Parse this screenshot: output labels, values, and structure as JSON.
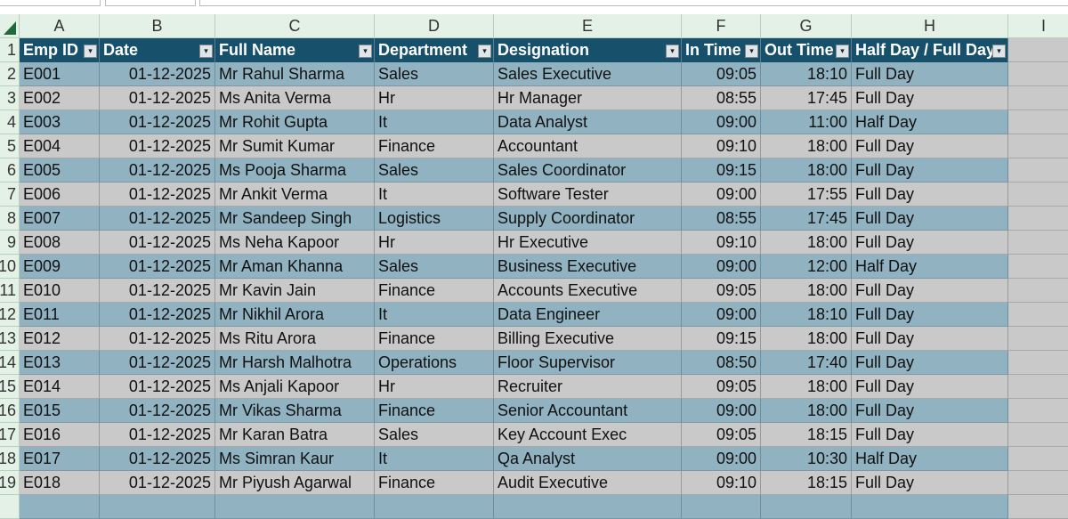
{
  "column_letters": [
    "A",
    "B",
    "C",
    "D",
    "E",
    "F",
    "G",
    "H",
    "I"
  ],
  "row_numbers": [
    "1",
    "2",
    "3",
    "4",
    "5",
    "6",
    "7",
    "8",
    "9",
    "10",
    "11",
    "12",
    "13",
    "14",
    "15",
    "16",
    "17",
    "18",
    "19"
  ],
  "table": {
    "headers": [
      "Emp ID",
      "Date",
      "Full Name",
      "Department",
      "Designation",
      "In Time",
      "Out Time",
      "Half Day / Full Day"
    ],
    "rows": [
      [
        "E001",
        "01-12-2025",
        "Mr Rahul Sharma",
        "Sales",
        "Sales Executive",
        "09:05",
        "18:10",
        "Full Day"
      ],
      [
        "E002",
        "01-12-2025",
        "Ms Anita Verma",
        "Hr",
        "Hr Manager",
        "08:55",
        "17:45",
        "Full Day"
      ],
      [
        "E003",
        "01-12-2025",
        "Mr Rohit Gupta",
        "It",
        "Data Analyst",
        "09:00",
        "11:00",
        "Half Day"
      ],
      [
        "E004",
        "01-12-2025",
        "Mr Sumit Kumar",
        "Finance",
        "Accountant",
        "09:10",
        "18:00",
        "Full Day"
      ],
      [
        "E005",
        "01-12-2025",
        "Ms Pooja Sharma",
        "Sales",
        "Sales Coordinator",
        "09:15",
        "18:00",
        "Full Day"
      ],
      [
        "E006",
        "01-12-2025",
        "Mr Ankit Verma",
        "It",
        "Software Tester",
        "09:00",
        "17:55",
        "Full Day"
      ],
      [
        "E007",
        "01-12-2025",
        "Mr Sandeep Singh",
        "Logistics",
        "Supply Coordinator",
        "08:55",
        "17:45",
        "Full Day"
      ],
      [
        "E008",
        "01-12-2025",
        "Ms Neha Kapoor",
        "Hr",
        "Hr Executive",
        "09:10",
        "18:00",
        "Full Day"
      ],
      [
        "E009",
        "01-12-2025",
        "Mr Aman Khanna",
        "Sales",
        "Business Executive",
        "09:00",
        "12:00",
        "Half Day"
      ],
      [
        "E010",
        "01-12-2025",
        "Mr Kavin Jain",
        "Finance",
        "Accounts Executive",
        "09:05",
        "18:00",
        "Full Day"
      ],
      [
        "E011",
        "01-12-2025",
        "Mr Nikhil Arora",
        "It",
        "Data Engineer",
        "09:00",
        "18:10",
        "Full Day"
      ],
      [
        "E012",
        "01-12-2025",
        "Ms Ritu Arora",
        "Finance",
        "Billing Executive",
        "09:15",
        "18:00",
        "Full Day"
      ],
      [
        "E013",
        "01-12-2025",
        "Mr Harsh Malhotra",
        "Operations",
        "Floor Supervisor",
        "08:50",
        "17:40",
        "Full Day"
      ],
      [
        "E014",
        "01-12-2025",
        "Ms Anjali Kapoor",
        "Hr",
        "Recruiter",
        "09:05",
        "18:00",
        "Full Day"
      ],
      [
        "E015",
        "01-12-2025",
        "Mr Vikas Sharma",
        "Finance",
        "Senior Accountant",
        "09:00",
        "18:00",
        "Full Day"
      ],
      [
        "E016",
        "01-12-2025",
        "Mr Karan Batra",
        "Sales",
        "Key Account Exec",
        "09:05",
        "18:15",
        "Full Day"
      ],
      [
        "E017",
        "01-12-2025",
        "Ms Simran Kaur",
        "It",
        "Qa Analyst",
        "09:00",
        "10:30",
        "Half Day"
      ],
      [
        "E018",
        "01-12-2025",
        "Mr Piyush Agarwal",
        "Finance",
        "Audit Executive",
        "09:10",
        "18:15",
        "Full Day"
      ]
    ]
  }
}
